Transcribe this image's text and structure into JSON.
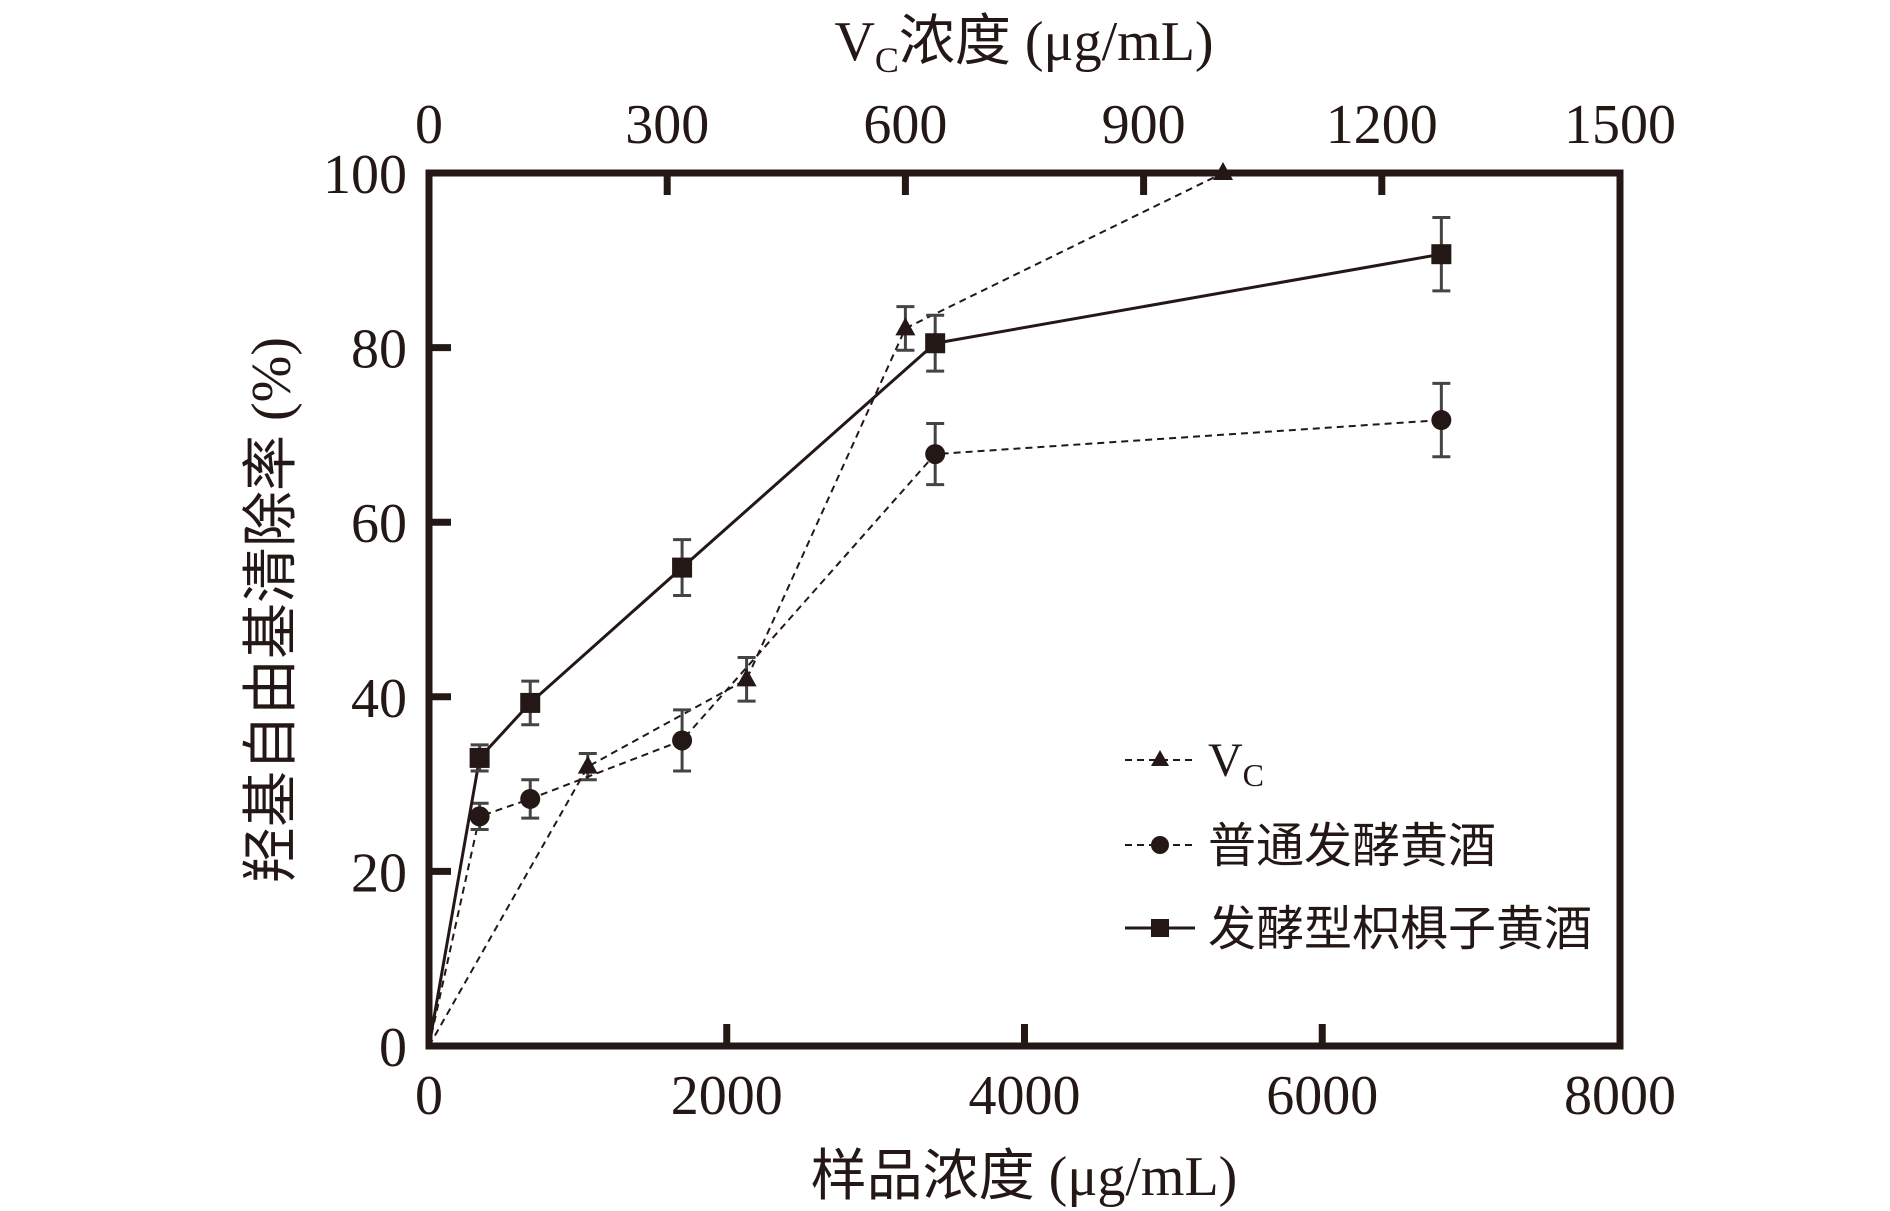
{
  "chart_data": {
    "type": "line",
    "xlabel_bottom": "样品浓度 (μg/mL)",
    "xlabel_top_main": "V",
    "xlabel_top_sub": "C",
    "xlabel_top_rest": "浓度 (μg/mL)",
    "ylabel": "羟基自由基清除率 (%)",
    "xlim_bottom": [
      0,
      8000
    ],
    "xlim_top": [
      0,
      1500
    ],
    "ylim": [
      0,
      100
    ],
    "xticks_bottom": [
      "0",
      "2000",
      "4000",
      "6000",
      "8000"
    ],
    "xticks_top": [
      "0",
      "300",
      "600",
      "900",
      "1200",
      "1500"
    ],
    "yticks": [
      "0",
      "20",
      "40",
      "60",
      "80",
      "100"
    ],
    "grid": false,
    "legend_placement": "bottom-right",
    "series": [
      {
        "name_main": "V",
        "name_sub": "C",
        "axis": "top",
        "marker": "triangle",
        "line": "dashed",
        "x": [
          0,
          200,
          400,
          600,
          1000
        ],
        "y": [
          0,
          32,
          42,
          82.2,
          100
        ],
        "err": [
          0,
          1.5,
          2.5,
          2.5,
          0
        ]
      },
      {
        "name": "普通发酵黄酒",
        "axis": "bottom",
        "marker": "circle",
        "line": "dashed",
        "x": [
          0,
          340,
          680,
          1700,
          3400,
          6800
        ],
        "y": [
          0,
          26.3,
          28.3,
          35,
          67.8,
          71.7
        ],
        "err": [
          0,
          1.5,
          2.2,
          3.5,
          3.5,
          4.2
        ]
      },
      {
        "name": "发酵型枳椇子黄酒",
        "axis": "bottom",
        "marker": "square",
        "line": "solid",
        "x": [
          0,
          340,
          680,
          1700,
          3400,
          6800
        ],
        "y": [
          0,
          33,
          39.3,
          54.8,
          80.5,
          90.7
        ],
        "err": [
          0,
          1.5,
          2.5,
          3.2,
          3.2,
          4.2
        ]
      }
    ]
  }
}
